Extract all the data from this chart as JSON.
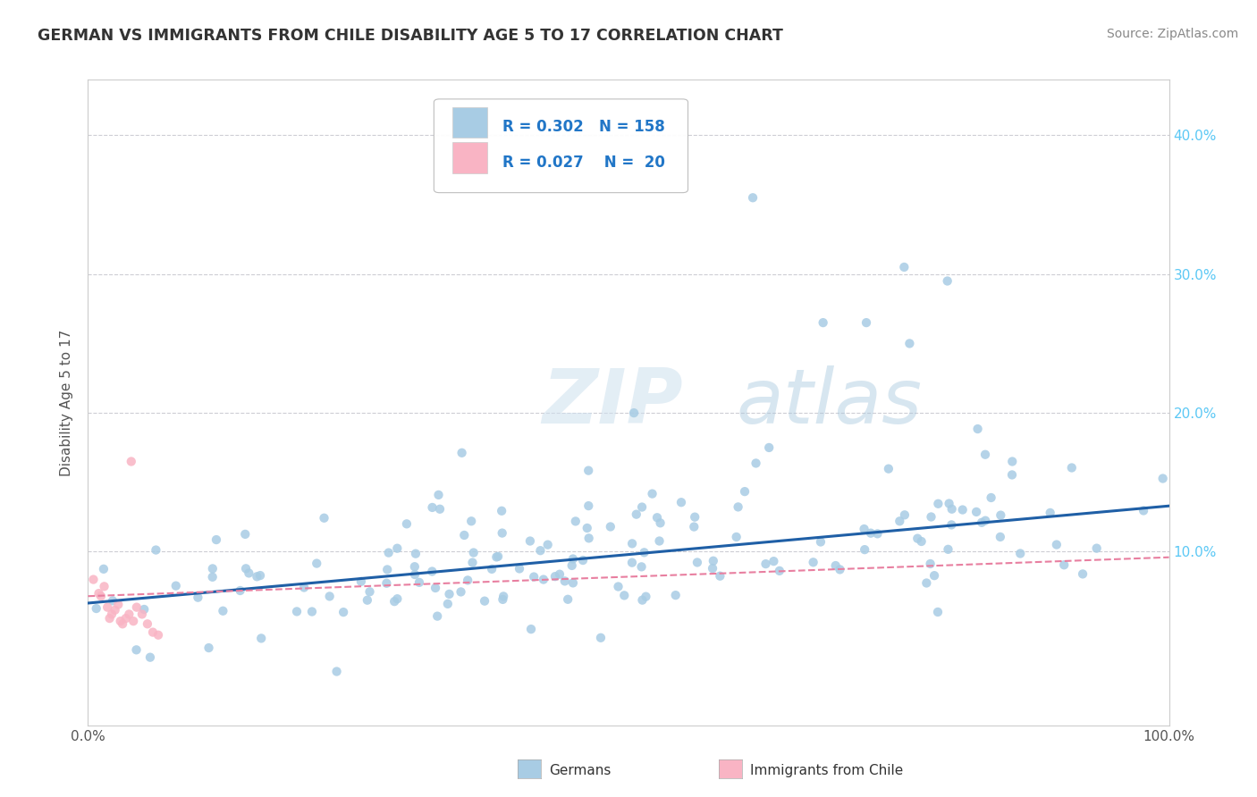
{
  "title": "GERMAN VS IMMIGRANTS FROM CHILE DISABILITY AGE 5 TO 17 CORRELATION CHART",
  "source": "Source: ZipAtlas.com",
  "ylabel": "Disability Age 5 to 17",
  "xlim": [
    0.0,
    1.0
  ],
  "ylim": [
    -0.025,
    0.44
  ],
  "x_tick_positions": [
    0.0,
    0.1,
    0.2,
    0.3,
    0.4,
    0.5,
    0.6,
    0.7,
    0.8,
    0.9,
    1.0
  ],
  "x_tick_labels": [
    "0.0%",
    "",
    "",
    "",
    "",
    "",
    "",
    "",
    "",
    "",
    "100.0%"
  ],
  "y_tick_positions": [
    0.0,
    0.1,
    0.2,
    0.3,
    0.4
  ],
  "y_tick_labels_right": [
    "",
    "10.0%",
    "20.0%",
    "30.0%",
    "40.0%"
  ],
  "legend1_R": "0.302",
  "legend1_N": "158",
  "legend2_R": "0.027",
  "legend2_N": "20",
  "color_blue": "#a8cce4",
  "color_pink": "#f9b4c4",
  "line_blue": "#1f5fa6",
  "line_pink": "#e87fa0",
  "watermark_zip": "ZIP",
  "watermark_atlas": "atlas",
  "background_color": "#ffffff",
  "grid_color": "#c8c8d0",
  "trend_blue_x0": 0.0,
  "trend_blue_y0": 0.063,
  "trend_blue_x1": 1.0,
  "trend_blue_y1": 0.133,
  "trend_pink_x0": 0.0,
  "trend_pink_y0": 0.068,
  "trend_pink_x1": 1.0,
  "trend_pink_y1": 0.096,
  "title_color": "#333333",
  "source_color": "#888888",
  "ylabel_color": "#555555",
  "right_tick_color": "#5bc8f5",
  "bottom_label_color": "#333333"
}
